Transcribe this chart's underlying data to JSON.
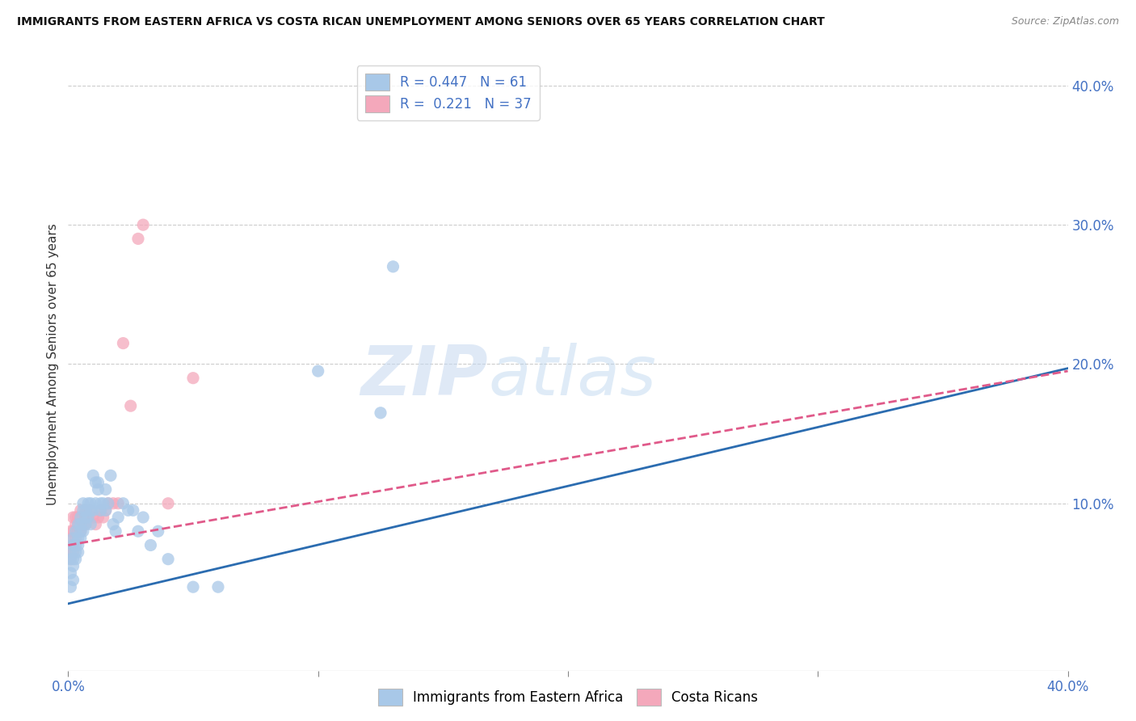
{
  "title": "IMMIGRANTS FROM EASTERN AFRICA VS COSTA RICAN UNEMPLOYMENT AMONG SENIORS OVER 65 YEARS CORRELATION CHART",
  "source": "Source: ZipAtlas.com",
  "ylabel": "Unemployment Among Seniors over 65 years",
  "xlim": [
    0.0,
    0.4
  ],
  "ylim": [
    -0.02,
    0.42
  ],
  "legend_r1": "0.447",
  "legend_n1": "61",
  "legend_r2": "0.221",
  "legend_n2": "37",
  "color_blue": "#a8c8e8",
  "color_pink": "#f4a8bb",
  "line_color_blue": "#2b6cb0",
  "line_color_pink": "#e05a8a",
  "watermark_zip": "ZIP",
  "watermark_atlas": "atlas",
  "background_color": "#ffffff",
  "blue_scatter_x": [
    0.001,
    0.001,
    0.001,
    0.001,
    0.002,
    0.002,
    0.002,
    0.002,
    0.002,
    0.003,
    0.003,
    0.003,
    0.003,
    0.004,
    0.004,
    0.004,
    0.004,
    0.005,
    0.005,
    0.005,
    0.005,
    0.006,
    0.006,
    0.006,
    0.007,
    0.007,
    0.007,
    0.008,
    0.008,
    0.009,
    0.009,
    0.009,
    0.01,
    0.01,
    0.011,
    0.011,
    0.012,
    0.012,
    0.013,
    0.013,
    0.014,
    0.015,
    0.015,
    0.016,
    0.017,
    0.018,
    0.019,
    0.02,
    0.022,
    0.024,
    0.026,
    0.028,
    0.03,
    0.033,
    0.036,
    0.04,
    0.05,
    0.06,
    0.1,
    0.125,
    0.13
  ],
  "blue_scatter_y": [
    0.05,
    0.06,
    0.065,
    0.04,
    0.055,
    0.06,
    0.07,
    0.045,
    0.075,
    0.065,
    0.07,
    0.06,
    0.08,
    0.07,
    0.075,
    0.085,
    0.065,
    0.08,
    0.09,
    0.075,
    0.085,
    0.08,
    0.095,
    0.1,
    0.085,
    0.095,
    0.09,
    0.09,
    0.1,
    0.095,
    0.085,
    0.1,
    0.095,
    0.12,
    0.1,
    0.115,
    0.11,
    0.115,
    0.095,
    0.1,
    0.1,
    0.11,
    0.095,
    0.1,
    0.12,
    0.085,
    0.08,
    0.09,
    0.1,
    0.095,
    0.095,
    0.08,
    0.09,
    0.07,
    0.08,
    0.06,
    0.04,
    0.04,
    0.195,
    0.165,
    0.27
  ],
  "pink_scatter_x": [
    0.001,
    0.001,
    0.001,
    0.001,
    0.002,
    0.002,
    0.002,
    0.002,
    0.003,
    0.003,
    0.003,
    0.004,
    0.004,
    0.004,
    0.005,
    0.005,
    0.006,
    0.006,
    0.007,
    0.007,
    0.008,
    0.009,
    0.01,
    0.011,
    0.012,
    0.013,
    0.014,
    0.015,
    0.016,
    0.018,
    0.02,
    0.022,
    0.025,
    0.028,
    0.03,
    0.04,
    0.05
  ],
  "pink_scatter_y": [
    0.06,
    0.065,
    0.075,
    0.08,
    0.07,
    0.08,
    0.065,
    0.09,
    0.075,
    0.085,
    0.09,
    0.08,
    0.085,
    0.09,
    0.08,
    0.095,
    0.085,
    0.09,
    0.085,
    0.095,
    0.09,
    0.095,
    0.09,
    0.085,
    0.09,
    0.095,
    0.09,
    0.095,
    0.1,
    0.1,
    0.1,
    0.215,
    0.17,
    0.29,
    0.3,
    0.1,
    0.19
  ],
  "blue_line_x": [
    0.0,
    0.4
  ],
  "blue_line_y": [
    0.028,
    0.197
  ],
  "pink_line_x": [
    0.0,
    0.4
  ],
  "pink_line_y": [
    0.07,
    0.195
  ]
}
